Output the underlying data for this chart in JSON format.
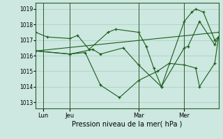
{
  "background_color": "#cce8e0",
  "grid_color": "#aaccbb",
  "line_color": "#1a5c1a",
  "marker_color": "#1a5c1a",
  "ylabel_ticks": [
    1013,
    1014,
    1015,
    1016,
    1017,
    1018,
    1019
  ],
  "ylim": [
    1012.6,
    1019.4
  ],
  "xlim": [
    0,
    24
  ],
  "xlabel": "Pression niveau de la mer( hPa )",
  "day_labels": [
    "Lun",
    "Jeu",
    "Mar",
    "Mer"
  ],
  "day_positions": [
    1.0,
    4.5,
    13.5,
    19.5
  ],
  "vline_positions": [
    1.0,
    4.5,
    13.5,
    19.5
  ],
  "series": [
    {
      "x": [
        0.0,
        1.5,
        4.5,
        5.5,
        7.0,
        9.5,
        10.5,
        13.5,
        14.5,
        15.5,
        16.5,
        19.5,
        20.5,
        21.0,
        22.0,
        23.5,
        24.0
      ],
      "y": [
        1017.5,
        1017.2,
        1017.1,
        1017.3,
        1016.4,
        1017.5,
        1017.7,
        1017.5,
        1016.6,
        1015.2,
        1014.0,
        1018.2,
        1018.8,
        1019.0,
        1018.8,
        1017.0,
        1017.2
      ]
    },
    {
      "x": [
        0.0,
        24.0
      ],
      "y": [
        1016.3,
        1017.5
      ]
    },
    {
      "x": [
        0.0,
        4.5,
        6.5,
        8.5,
        11.0,
        13.5,
        16.0,
        17.5,
        19.5,
        21.0,
        21.5,
        23.5,
        24.0
      ],
      "y": [
        1016.3,
        1016.1,
        1016.2,
        1014.1,
        1013.3,
        1014.4,
        1015.0,
        1015.5,
        1015.4,
        1015.2,
        1014.0,
        1015.5,
        1017.2
      ]
    },
    {
      "x": [
        0.0,
        4.5,
        7.5,
        8.5,
        11.5,
        13.5,
        16.5,
        19.5,
        20.0,
        21.5,
        23.5,
        24.0
      ],
      "y": [
        1016.3,
        1016.1,
        1016.4,
        1016.1,
        1016.5,
        1015.4,
        1014.0,
        1016.5,
        1016.6,
        1018.2,
        1016.7,
        1017.2
      ]
    }
  ]
}
